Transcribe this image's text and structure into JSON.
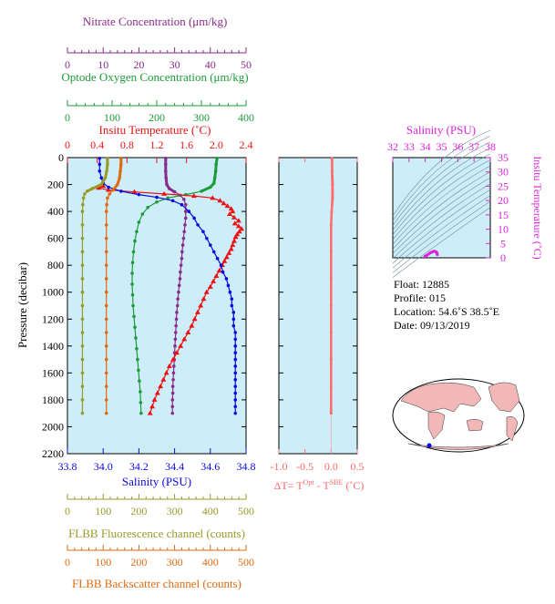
{
  "colors": {
    "nitrate": "#8a2a8a",
    "oxygen": "#1e9a3a",
    "temperature": "#ee1111",
    "salinity": "#0a0ae0",
    "fluorescence": "#9a9a2a",
    "backscatter": "#e06a10",
    "delta_t": "#ff6a6a",
    "inset": "#dd22dd",
    "panel_bg": "#cdeef8"
  },
  "axes": {
    "nitrate": {
      "label": "Nitrate Concentration (μm/kg)",
      "ticks": [
        "0",
        "10",
        "20",
        "30",
        "40",
        "50"
      ],
      "range": [
        0,
        50
      ]
    },
    "oxygen": {
      "label": "Optode Oxygen Concentration (μm/kg)",
      "ticks": [
        "0",
        "100",
        "200",
        "300",
        "400"
      ],
      "range": [
        0,
        400
      ]
    },
    "temperature": {
      "label": "Insitu Temperature (˚C)",
      "ticks": [
        "0",
        "0.4",
        "0.8",
        "1.2",
        "1.6",
        "2.0",
        "2.4"
      ],
      "range": [
        0,
        2.4
      ]
    },
    "salinity": {
      "label": "Salinity (PSU)",
      "ticks": [
        "33.8",
        "34.0",
        "34.2",
        "34.4",
        "34.6",
        "34.8"
      ],
      "range": [
        33.8,
        34.8
      ]
    },
    "pressure": {
      "label": "Pressure (decibar)",
      "ticks": [
        "0",
        "200",
        "400",
        "600",
        "800",
        "1000",
        "1200",
        "1400",
        "1600",
        "1800",
        "2000",
        "2200"
      ],
      "range": [
        0,
        2200
      ]
    },
    "fluorescence": {
      "label": "FLBB Fluorescence channel (counts)",
      "ticks": [
        "0",
        "100",
        "200",
        "300",
        "400",
        "500"
      ],
      "range": [
        0,
        500
      ]
    },
    "backscatter": {
      "label": "FLBB Backscatter channel (counts)",
      "ticks": [
        "0",
        "100",
        "200",
        "300",
        "400",
        "500"
      ],
      "range": [
        0,
        500
      ]
    },
    "delta_t": {
      "label_prefix": "ΔT= T",
      "label_sup1": "Opt",
      "label_mid": " - T",
      "label_sup2": "SBE",
      "label_suffix": " (˚C)",
      "ticks": [
        "-1.0",
        "-0.5",
        "0.0",
        "0.5"
      ],
      "range": [
        -1.0,
        0.5
      ]
    },
    "inset_salinity": {
      "label": "Salinity (PSU)",
      "ticks": [
        "32",
        "33",
        "34",
        "35",
        "36",
        "37",
        "38"
      ],
      "range": [
        32,
        38
      ]
    },
    "inset_temperature": {
      "label": "Insitu Temperature (˚C)",
      "ticks": [
        "0",
        "5",
        "10",
        "15",
        "20",
        "25",
        "30",
        "35"
      ],
      "range": [
        0,
        35
      ]
    }
  },
  "info": {
    "float": "Float:  12885",
    "profile": "Profile:  015",
    "location": "Location:  54.6˚S  38.5˚E",
    "date": "Date:  09/13/2019"
  },
  "chart_data": {
    "type": "line",
    "y_axis": "pressure",
    "y_inverted": true,
    "series": [
      {
        "name": "Nitrate Concentration (μm/kg)",
        "axis": "nitrate",
        "marker": "circle",
        "points": [
          [
            27.5,
            5
          ],
          [
            27.5,
            50
          ],
          [
            27.5,
            100
          ],
          [
            27.6,
            150
          ],
          [
            27.8,
            200
          ],
          [
            28.5,
            230
          ],
          [
            30,
            255
          ],
          [
            31.6,
            280
          ],
          [
            32.6,
            310
          ],
          [
            33.1,
            350
          ],
          [
            33.1,
            400
          ],
          [
            33.1,
            450
          ],
          [
            32.9,
            500
          ],
          [
            32.7,
            550
          ],
          [
            32.5,
            600
          ],
          [
            32.3,
            650
          ],
          [
            32.1,
            700
          ],
          [
            32,
            750
          ],
          [
            31.8,
            800
          ],
          [
            31.6,
            850
          ],
          [
            31.5,
            900
          ],
          [
            31.3,
            950
          ],
          [
            31.1,
            1000
          ],
          [
            30.9,
            1050
          ],
          [
            30.8,
            1100
          ],
          [
            30.6,
            1150
          ],
          [
            30.5,
            1200
          ],
          [
            30.4,
            1250
          ],
          [
            30.3,
            1300
          ],
          [
            30.2,
            1350
          ],
          [
            30.1,
            1400
          ],
          [
            30,
            1450
          ],
          [
            29.9,
            1500
          ],
          [
            29.8,
            1550
          ],
          [
            29.7,
            1600
          ],
          [
            29.6,
            1650
          ],
          [
            29.5,
            1700
          ],
          [
            29.5,
            1750
          ],
          [
            29.4,
            1800
          ],
          [
            29.4,
            1850
          ],
          [
            29.4,
            1900
          ]
        ]
      },
      {
        "name": "Optode Oxygen Concentration (μm/kg)",
        "axis": "oxygen",
        "marker": "circle",
        "points": [
          [
            335,
            5
          ],
          [
            333,
            50
          ],
          [
            332,
            100
          ],
          [
            330,
            150
          ],
          [
            328,
            190
          ],
          [
            320,
            220
          ],
          [
            300,
            250
          ],
          [
            265,
            275
          ],
          [
            225,
            300
          ],
          [
            200,
            330
          ],
          [
            180,
            370
          ],
          [
            168,
            420
          ],
          [
            160,
            480
          ],
          [
            155,
            550
          ],
          [
            151,
            620
          ],
          [
            148,
            700
          ],
          [
            146,
            780
          ],
          [
            145,
            860
          ],
          [
            145,
            940
          ],
          [
            146,
            1020
          ],
          [
            147,
            1100
          ],
          [
            149,
            1180
          ],
          [
            151,
            1260
          ],
          [
            153,
            1340
          ],
          [
            155,
            1420
          ],
          [
            157,
            1500
          ],
          [
            159,
            1580
          ],
          [
            161,
            1660
          ],
          [
            163,
            1740
          ],
          [
            164,
            1820
          ],
          [
            165,
            1900
          ]
        ]
      },
      {
        "name": "Insitu Temperature (˚C)",
        "axis": "temperature",
        "marker": "triangle",
        "points": [
          [
            0.48,
            210
          ],
          [
            0.42,
            225
          ],
          [
            0.55,
            240
          ],
          [
            0.9,
            255
          ],
          [
            1.3,
            270
          ],
          [
            1.7,
            285
          ],
          [
            1.95,
            300
          ],
          [
            2.05,
            320
          ],
          [
            2.1,
            340
          ],
          [
            2.15,
            360
          ],
          [
            2.2,
            380
          ],
          [
            2.22,
            400
          ],
          [
            2.18,
            420
          ],
          [
            2.24,
            445
          ],
          [
            2.3,
            470
          ],
          [
            2.25,
            490
          ],
          [
            2.3,
            510
          ],
          [
            2.34,
            530
          ],
          [
            2.31,
            550
          ],
          [
            2.28,
            570
          ],
          [
            2.26,
            590
          ],
          [
            2.24,
            620
          ],
          [
            2.22,
            650
          ],
          [
            2.2,
            680
          ],
          [
            2.17,
            710
          ],
          [
            2.14,
            740
          ],
          [
            2.11,
            770
          ],
          [
            2.08,
            800
          ],
          [
            2.04,
            840
          ],
          [
            2.0,
            880
          ],
          [
            1.96,
            920
          ],
          [
            1.92,
            960
          ],
          [
            1.87,
            1000
          ],
          [
            1.83,
            1050
          ],
          [
            1.79,
            1100
          ],
          [
            1.75,
            1150
          ],
          [
            1.71,
            1200
          ],
          [
            1.67,
            1250
          ],
          [
            1.62,
            1300
          ],
          [
            1.57,
            1350
          ],
          [
            1.52,
            1400
          ],
          [
            1.47,
            1450
          ],
          [
            1.42,
            1500
          ],
          [
            1.37,
            1550
          ],
          [
            1.33,
            1600
          ],
          [
            1.29,
            1650
          ],
          [
            1.25,
            1700
          ],
          [
            1.21,
            1750
          ],
          [
            1.17,
            1800
          ],
          [
            1.14,
            1850
          ],
          [
            1.11,
            1900
          ]
        ]
      },
      {
        "name": "Salinity (PSU)",
        "axis": "salinity",
        "marker": "circle",
        "points": [
          [
            33.98,
            5
          ],
          [
            33.98,
            50
          ],
          [
            33.98,
            100
          ],
          [
            33.99,
            150
          ],
          [
            34.0,
            190
          ],
          [
            34.03,
            220
          ],
          [
            34.1,
            250
          ],
          [
            34.2,
            275
          ],
          [
            34.3,
            295
          ],
          [
            34.39,
            320
          ],
          [
            34.44,
            350
          ],
          [
            34.48,
            400
          ],
          [
            34.51,
            450
          ],
          [
            34.53,
            500
          ],
          [
            34.56,
            550
          ],
          [
            34.58,
            600
          ],
          [
            34.6,
            650
          ],
          [
            34.62,
            700
          ],
          [
            34.64,
            750
          ],
          [
            34.66,
            800
          ],
          [
            34.67,
            850
          ],
          [
            34.69,
            900
          ],
          [
            34.7,
            950
          ],
          [
            34.71,
            1000
          ],
          [
            34.72,
            1050
          ],
          [
            34.72,
            1100
          ],
          [
            34.73,
            1150
          ],
          [
            34.73,
            1200
          ],
          [
            34.73,
            1250
          ],
          [
            34.74,
            1300
          ],
          [
            34.74,
            1350
          ],
          [
            34.74,
            1400
          ],
          [
            34.74,
            1450
          ],
          [
            34.74,
            1500
          ],
          [
            34.74,
            1550
          ],
          [
            34.74,
            1600
          ],
          [
            34.74,
            1650
          ],
          [
            34.74,
            1700
          ],
          [
            34.74,
            1750
          ],
          [
            34.74,
            1800
          ],
          [
            34.74,
            1850
          ],
          [
            34.74,
            1900
          ]
        ]
      },
      {
        "name": "FLBB Fluorescence channel (counts)",
        "axis": "fluorescence",
        "marker": "circle",
        "points": [
          [
            112,
            5
          ],
          [
            112,
            50
          ],
          [
            110,
            100
          ],
          [
            106,
            150
          ],
          [
            95,
            200
          ],
          [
            70,
            230
          ],
          [
            55,
            250
          ],
          [
            48,
            270
          ],
          [
            45,
            300
          ],
          [
            43,
            350
          ],
          [
            42,
            400
          ],
          [
            42,
            500
          ],
          [
            42,
            600
          ],
          [
            42,
            700
          ],
          [
            42,
            800
          ],
          [
            42,
            900
          ],
          [
            42,
            1000
          ],
          [
            42,
            1100
          ],
          [
            42,
            1200
          ],
          [
            42,
            1300
          ],
          [
            42,
            1400
          ],
          [
            42,
            1500
          ],
          [
            42,
            1600
          ],
          [
            42,
            1700
          ],
          [
            42,
            1800
          ],
          [
            42,
            1900
          ]
        ]
      },
      {
        "name": "FLBB Backscatter channel (counts)",
        "axis": "backscatter",
        "marker": "circle",
        "points": [
          [
            150,
            5
          ],
          [
            150,
            50
          ],
          [
            148,
            100
          ],
          [
            146,
            150
          ],
          [
            140,
            200
          ],
          [
            128,
            240
          ],
          [
            118,
            270
          ],
          [
            112,
            300
          ],
          [
            110,
            350
          ],
          [
            109,
            400
          ],
          [
            109,
            500
          ],
          [
            109,
            600
          ],
          [
            109,
            700
          ],
          [
            109,
            800
          ],
          [
            109,
            900
          ],
          [
            109,
            1000
          ],
          [
            109,
            1100
          ],
          [
            109,
            1200
          ],
          [
            109,
            1300
          ],
          [
            109,
            1400
          ],
          [
            109,
            1500
          ],
          [
            109,
            1600
          ],
          [
            109,
            1700
          ],
          [
            109,
            1800
          ],
          [
            109,
            1900
          ]
        ]
      },
      {
        "name": "ΔT",
        "axis": "delta_t",
        "marker": "circle",
        "points": [
          [
            0.02,
            5
          ],
          [
            0.02,
            100
          ],
          [
            0.03,
            200
          ],
          [
            0.03,
            300
          ],
          [
            0.01,
            400
          ],
          [
            0.0,
            500
          ],
          [
            0.0,
            700
          ],
          [
            0.0,
            900
          ],
          [
            0.0,
            1100
          ],
          [
            0.0,
            1300
          ],
          [
            0.0,
            1500
          ],
          [
            0.0,
            1700
          ],
          [
            0.0,
            1900
          ]
        ]
      },
      {
        "name": "T-S",
        "axis": "inset",
        "marker": "circle",
        "points": [
          [
            33.98,
            0.48
          ],
          [
            34.02,
            0.6
          ],
          [
            34.1,
            0.9
          ],
          [
            34.2,
            1.3
          ],
          [
            34.3,
            1.7
          ],
          [
            34.4,
            2.0
          ],
          [
            34.5,
            2.2
          ],
          [
            34.56,
            2.3
          ],
          [
            34.62,
            2.2
          ],
          [
            34.66,
            2.05
          ],
          [
            34.7,
            1.85
          ],
          [
            34.72,
            1.6
          ],
          [
            34.73,
            1.3
          ],
          [
            34.74,
            1.1
          ]
        ]
      }
    ]
  }
}
